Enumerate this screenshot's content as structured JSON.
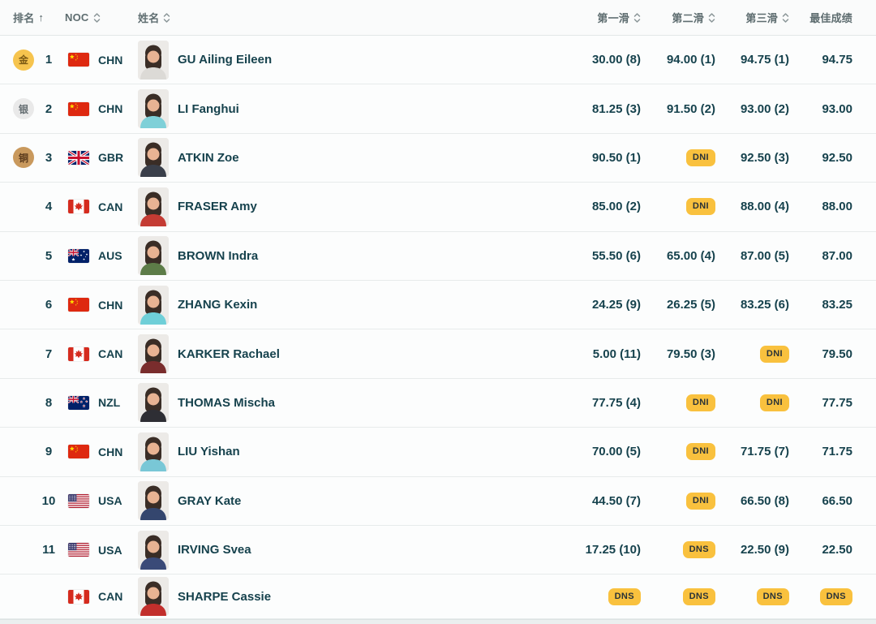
{
  "table": {
    "columns": {
      "rank": "排名",
      "noc": "NOC",
      "name": "姓名",
      "run1": "第一滑",
      "run2": "第二滑",
      "run3": "第三滑",
      "best": "最佳成绩"
    },
    "sort": {
      "active_column": "rank",
      "direction": "ascending",
      "ascending_icon": "↑"
    },
    "badges": [
      "DNI",
      "DNS"
    ],
    "rows": [
      {
        "rank": "1",
        "medal": "gold",
        "medal_label": "金",
        "noc": "CHN",
        "name": "GU Ailing Eileen",
        "run1": "30.00 (8)",
        "run2": "94.00 (1)",
        "run3": "94.75 (1)",
        "best": "94.75",
        "avatar_color": "#dcdad6"
      },
      {
        "rank": "2",
        "medal": "silver",
        "medal_label": "银",
        "noc": "CHN",
        "name": "LI Fanghui",
        "run1": "81.25 (3)",
        "run2": "91.50 (2)",
        "run3": "93.00 (2)",
        "best": "93.00",
        "avatar_color": "#7fd0d8"
      },
      {
        "rank": "3",
        "medal": "bronze",
        "medal_label": "铜",
        "noc": "GBR",
        "name": "ATKIN Zoe",
        "run1": "90.50 (1)",
        "run2": "DNI",
        "run3": "92.50 (3)",
        "best": "92.50",
        "avatar_color": "#3a3f4a"
      },
      {
        "rank": "4",
        "medal": null,
        "medal_label": "",
        "noc": "CAN",
        "name": "FRASER Amy",
        "run1": "85.00 (2)",
        "run2": "DNI",
        "run3": "88.00 (4)",
        "best": "88.00",
        "avatar_color": "#c43b33"
      },
      {
        "rank": "5",
        "medal": null,
        "medal_label": "",
        "noc": "AUS",
        "name": "BROWN Indra",
        "run1": "55.50 (6)",
        "run2": "65.00 (4)",
        "run3": "87.00 (5)",
        "best": "87.00",
        "avatar_color": "#5d7c48"
      },
      {
        "rank": "6",
        "medal": null,
        "medal_label": "",
        "noc": "CHN",
        "name": "ZHANG Kexin",
        "run1": "24.25 (9)",
        "run2": "26.25 (5)",
        "run3": "83.25 (6)",
        "best": "83.25",
        "avatar_color": "#6fcfd8"
      },
      {
        "rank": "7",
        "medal": null,
        "medal_label": "",
        "noc": "CAN",
        "name": "KARKER Rachael",
        "run1": "5.00 (11)",
        "run2": "79.50 (3)",
        "run3": "DNI",
        "best": "79.50",
        "avatar_color": "#7a2d2d"
      },
      {
        "rank": "8",
        "medal": null,
        "medal_label": "",
        "noc": "NZL",
        "name": "THOMAS Mischa",
        "run1": "77.75 (4)",
        "run2": "DNI",
        "run3": "DNI",
        "best": "77.75",
        "avatar_color": "#2e2e34"
      },
      {
        "rank": "9",
        "medal": null,
        "medal_label": "",
        "noc": "CHN",
        "name": "LIU Yishan",
        "run1": "70.00 (5)",
        "run2": "DNI",
        "run3": "71.75 (7)",
        "best": "71.75",
        "avatar_color": "#79c7d6"
      },
      {
        "rank": "10",
        "medal": null,
        "medal_label": "",
        "noc": "USA",
        "name": "GRAY Kate",
        "run1": "44.50 (7)",
        "run2": "DNI",
        "run3": "66.50 (8)",
        "best": "66.50",
        "avatar_color": "#34466e"
      },
      {
        "rank": "11",
        "medal": null,
        "medal_label": "",
        "noc": "USA",
        "name": "IRVING Svea",
        "run1": "17.25 (10)",
        "run2": "DNS",
        "run3": "22.50 (9)",
        "best": "22.50",
        "avatar_color": "#3a4a78"
      },
      {
        "rank": "",
        "medal": null,
        "medal_label": "",
        "noc": "CAN",
        "name": "SHARPE Cassie",
        "run1": "DNS",
        "run2": "DNS",
        "run3": "DNS",
        "best": "DNS",
        "avatar_color": "#c22f2c"
      }
    ]
  },
  "colors": {
    "accent_text": "#16424d",
    "header_text": "#5e6d70",
    "badge_bg": "#f9c13e",
    "badge_text": "#2a3338",
    "medal_gold_bg": "#f6c44e",
    "medal_gold_text": "#7c5a14",
    "medal_silver_bg": "#e9e9e9",
    "medal_silver_text": "#636c70",
    "medal_bronze_bg": "#c9995d",
    "medal_bronze_text": "#5a3a1c"
  }
}
